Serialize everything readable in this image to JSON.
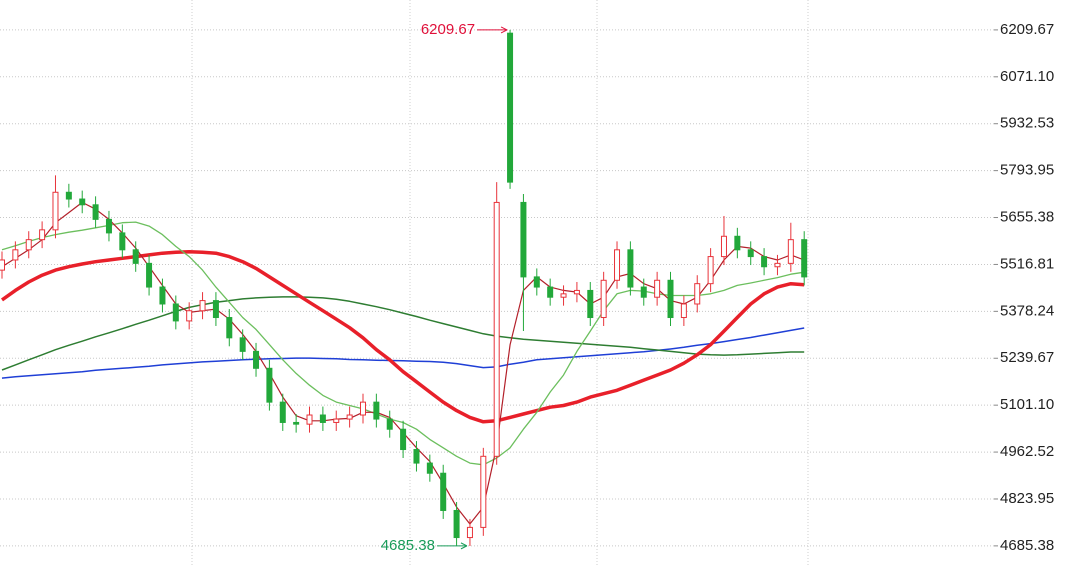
{
  "chart_data": {
    "type": "candlestick",
    "ylim": [
      4623,
      6298
    ],
    "yticks": [
      6209.67,
      {
        "value": 6071.1,
        "label": "6071.10"
      },
      5932.53,
      5793.95,
      5655.38,
      5516.81,
      5378.24,
      5239.67,
      {
        "value": 5101.1,
        "label": "5101.10"
      },
      4962.52,
      4823.95,
      4685.38
    ],
    "grid": true,
    "up_color": "#e8333a",
    "down_color": "#22a83a",
    "open": [
      5500,
      5530,
      5560,
      5590,
      5619,
      5730,
      5710,
      5693,
      5650,
      5610,
      5560,
      5520,
      5450,
      5400,
      5350,
      5380,
      5410,
      5360,
      5300,
      5260,
      5210,
      5110,
      5050,
      5045,
      5072,
      5050,
      5060,
      5072,
      5110,
      5060,
      5030,
      4970,
      4930,
      4900,
      4790,
      4710,
      4740,
      4950,
      6200,
      5700,
      5480,
      5450,
      5420,
      5430,
      5440,
      5360,
      5470,
      5560,
      5450,
      5420,
      5470,
      5360,
      5400,
      5460,
      5540,
      5600,
      5560,
      5540,
      5510,
      5520,
      5590
    ],
    "high": [
      5555,
      5585,
      5615,
      5644,
      5780,
      5755,
      5735,
      5718,
      5675,
      5635,
      5585,
      5545,
      5475,
      5425,
      5405,
      5435,
      5435,
      5385,
      5325,
      5285,
      5235,
      5135,
      5075,
      5097,
      5097,
      5085,
      5097,
      5135,
      5135,
      5085,
      5055,
      4995,
      4955,
      4925,
      4815,
      4765,
      4975,
      5760,
      6209.67,
      5725,
      5505,
      5475,
      5455,
      5465,
      5465,
      5495,
      5585,
      5585,
      5475,
      5495,
      5495,
      5425,
      5485,
      5565,
      5660,
      5625,
      5585,
      5565,
      5545,
      5640,
      5615
    ],
    "low": [
      5475,
      5505,
      5535,
      5565,
      5594,
      5685,
      5668,
      5625,
      5585,
      5535,
      5495,
      5425,
      5375,
      5325,
      5325,
      5355,
      5335,
      5275,
      5235,
      5185,
      5085,
      5025,
      5020,
      5020,
      5025,
      5025,
      5035,
      5047,
      5035,
      5005,
      4945,
      4905,
      4875,
      4765,
      4685.38,
      4685,
      4715,
      4925,
      5740,
      5320,
      5425,
      5395,
      5395,
      5405,
      5335,
      5335,
      5445,
      5425,
      5395,
      5395,
      5335,
      5335,
      5375,
      5435,
      5515,
      5535,
      5515,
      5485,
      5485,
      5495,
      5455
    ],
    "close": [
      5530,
      5560,
      5590,
      5619,
      5730,
      5710,
      5693,
      5650,
      5610,
      5560,
      5520,
      5450,
      5400,
      5350,
      5380,
      5410,
      5360,
      5300,
      5260,
      5210,
      5110,
      5050,
      5045,
      5072,
      5050,
      5060,
      5072,
      5110,
      5060,
      5030,
      4970,
      4930,
      4900,
      4790,
      4710,
      4740,
      4950,
      5700,
      5760,
      5480,
      5450,
      5420,
      5430,
      5440,
      5360,
      5470,
      5560,
      5450,
      5420,
      5470,
      5360,
      5400,
      5460,
      5540,
      5600,
      5560,
      5540,
      5510,
      5520,
      5590,
      5480
    ],
    "lines": [
      {
        "color": "#1f3fd6",
        "width": 1.5,
        "values": [
          5181,
          5185,
          5188,
          5191,
          5194,
          5197,
          5200,
          5204,
          5207,
          5210,
          5213,
          5216,
          5220,
          5223,
          5226,
          5229,
          5231,
          5233,
          5235,
          5237,
          5238,
          5239,
          5240,
          5240,
          5239,
          5238,
          5236,
          5235,
          5234,
          5233,
          5232,
          5231,
          5230,
          5228,
          5224,
          5218,
          5212,
          5214,
          5222,
          5228,
          5235,
          5238,
          5241,
          5244,
          5247,
          5250,
          5253,
          5256,
          5259,
          5263,
          5267,
          5272,
          5278,
          5283,
          5289,
          5295,
          5301,
          5308,
          5315,
          5322,
          5329
        ]
      },
      {
        "color": "#2e7d32",
        "width": 1.5,
        "values": [
          5205,
          5220,
          5235,
          5250,
          5265,
          5278,
          5290,
          5303,
          5315,
          5327,
          5340,
          5352,
          5365,
          5378,
          5390,
          5398,
          5405,
          5410,
          5415,
          5418,
          5420,
          5421,
          5421,
          5420,
          5418,
          5414,
          5408,
          5400,
          5392,
          5383,
          5373,
          5363,
          5352,
          5342,
          5332,
          5322,
          5312,
          5305,
          5300,
          5296,
          5293,
          5290,
          5287,
          5284,
          5281,
          5278,
          5275,
          5272,
          5268,
          5264,
          5260,
          5256,
          5252,
          5250,
          5249,
          5250,
          5252,
          5254,
          5256,
          5258,
          5258
        ]
      },
      {
        "color": "#e8202a",
        "width": 3.5,
        "values": [
          5412,
          5440,
          5465,
          5485,
          5500,
          5510,
          5518,
          5525,
          5530,
          5535,
          5540,
          5545,
          5550,
          5553,
          5554,
          5553,
          5550,
          5540,
          5525,
          5505,
          5480,
          5455,
          5430,
          5405,
          5380,
          5355,
          5330,
          5300,
          5265,
          5235,
          5200,
          5170,
          5140,
          5110,
          5085,
          5065,
          5052,
          5055,
          5065,
          5075,
          5085,
          5095,
          5100,
          5110,
          5125,
          5135,
          5145,
          5160,
          5175,
          5190,
          5205,
          5225,
          5250,
          5280,
          5320,
          5360,
          5400,
          5430,
          5450,
          5460,
          5457
        ]
      },
      {
        "color": "#6cbf5e",
        "width": 1.3,
        "values": [
          5560,
          5572,
          5585,
          5596,
          5605,
          5612,
          5618,
          5625,
          5632,
          5640,
          5642,
          5630,
          5605,
          5570,
          5540,
          5500,
          5450,
          5405,
          5360,
          5325,
          5280,
          5235,
          5195,
          5160,
          5130,
          5110,
          5100,
          5090,
          5075,
          5060,
          5050,
          5030,
          5000,
          4975,
          4950,
          4930,
          4925,
          4945,
          4975,
          5030,
          5080,
          5140,
          5190,
          5260,
          5320,
          5380,
          5430,
          5440,
          5438,
          5430,
          5425,
          5425,
          5425,
          5430,
          5440,
          5455,
          5462,
          5470,
          5478,
          5488,
          5494
        ]
      },
      {
        "color": "#b3202a",
        "width": 1.2,
        "values": [
          5510,
          5535,
          5560,
          5590,
          5640,
          5670,
          5700,
          5680,
          5650,
          5610,
          5565,
          5510,
          5455,
          5400,
          5375,
          5380,
          5385,
          5355,
          5310,
          5260,
          5195,
          5125,
          5070,
          5055,
          5055,
          5060,
          5062,
          5080,
          5080,
          5065,
          5020,
          4975,
          4935,
          4870,
          4800,
          4750,
          4800,
          4980,
          5280,
          5440,
          5480,
          5450,
          5440,
          5435,
          5400,
          5420,
          5480,
          5490,
          5460,
          5445,
          5410,
          5400,
          5420,
          5470,
          5530,
          5570,
          5565,
          5540,
          5530,
          5545,
          5530
        ]
      }
    ],
    "annotations": [
      {
        "label": "6209.67",
        "value": 6209.67,
        "color": "#e0103a"
      },
      {
        "label": "4685.38",
        "value": 4685.38,
        "color": "#1a9c5a"
      }
    ]
  }
}
